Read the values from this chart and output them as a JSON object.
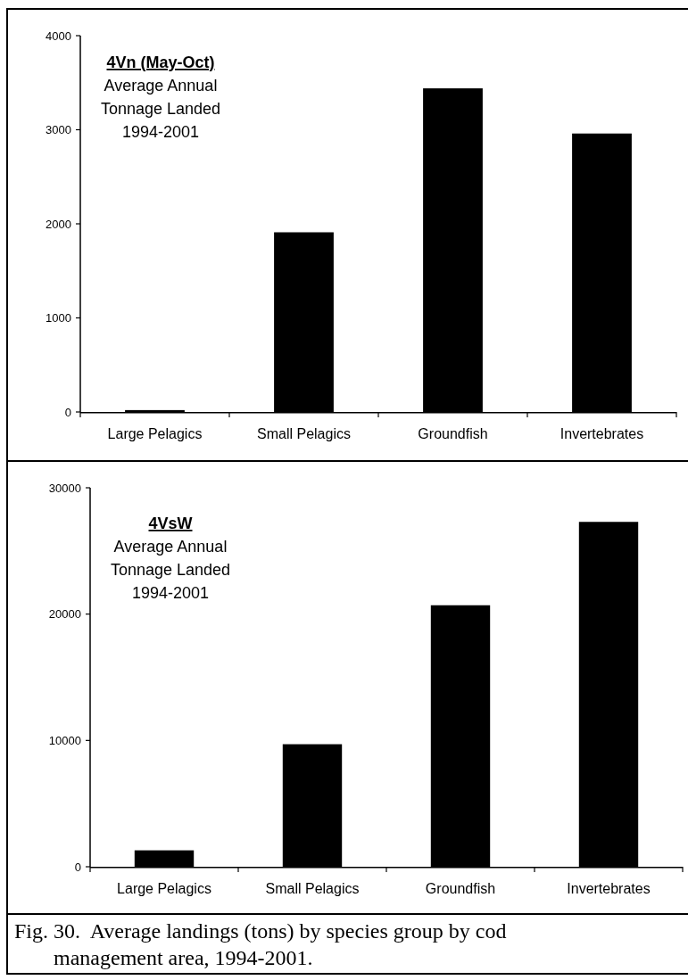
{
  "chart_data": [
    {
      "type": "bar",
      "title": "4Vn (May-Oct)",
      "subtitle": "Average Annual Tonnage Landed 1994-2001",
      "categories": [
        "Large Pelagics",
        "Small Pelagics",
        "Groundfish",
        "Invertebrates"
      ],
      "values": [
        20,
        1910,
        3440,
        2960
      ],
      "color": "#000000",
      "ylim": [
        0,
        4000
      ],
      "yticks": [
        0,
        1000,
        2000,
        3000,
        4000
      ],
      "grid": false
    },
    {
      "type": "bar",
      "title": "4VsW",
      "subtitle": "Average Annual Tonnage Landed 1994-2001",
      "categories": [
        "Large Pelagics",
        "Small Pelagics",
        "Groundfish",
        "Invertebrates"
      ],
      "values": [
        1300,
        9700,
        20700,
        27300
      ],
      "color": "#000000",
      "ylim": [
        0,
        30000
      ],
      "yticks": [
        0,
        10000,
        20000,
        30000
      ],
      "grid": false,
      "annotations": [
        "Fig. 30.  Average landings (tons) by species group by cod management area, 1994-2001."
      ]
    }
  ]
}
